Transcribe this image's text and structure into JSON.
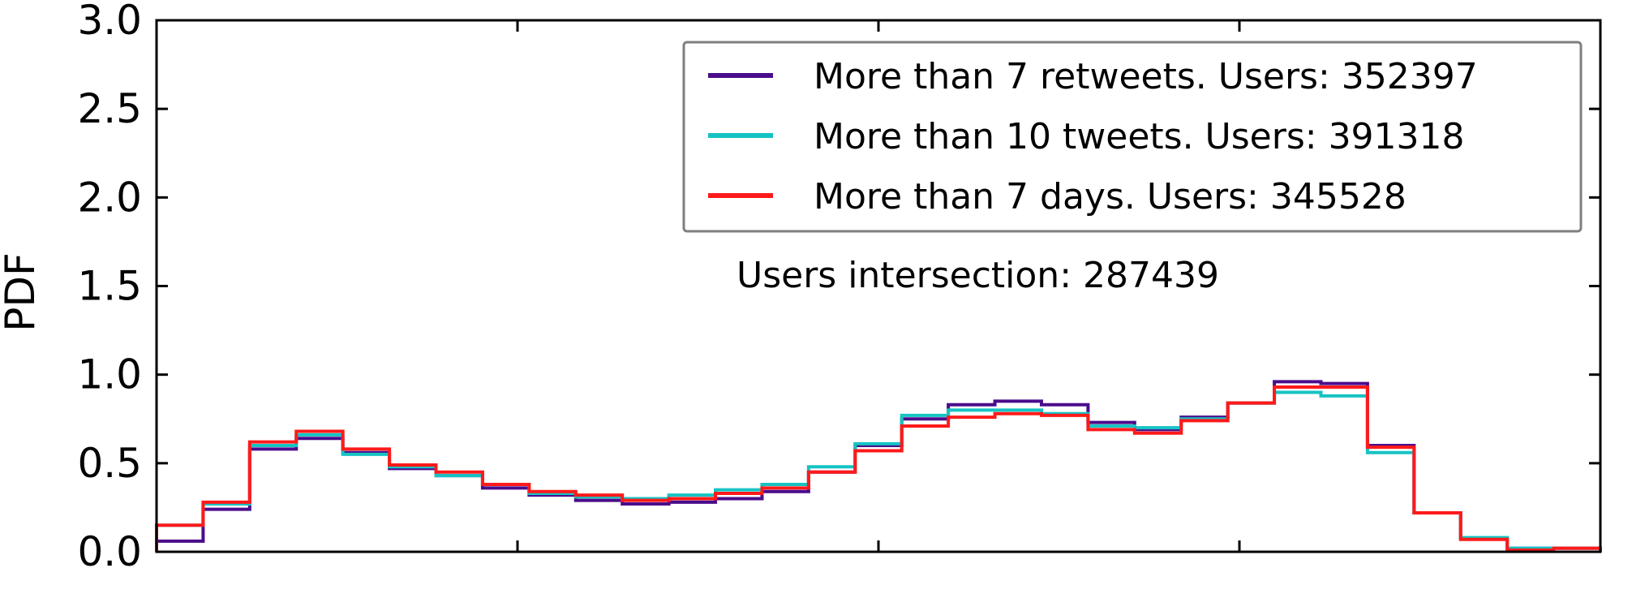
{
  "chart_data": {
    "type": "line",
    "step": true,
    "title": "",
    "xlabel": "",
    "ylabel": "PDF",
    "xlim": [
      0,
      32
    ],
    "ylim": [
      0,
      3.0
    ],
    "yticks": [
      "0.0",
      "0.5",
      "1.0",
      "1.5",
      "2.0",
      "2.5",
      "3.0"
    ],
    "ytick_values": [
      0,
      0.5,
      1.0,
      1.5,
      2.0,
      2.5,
      3.0
    ],
    "xticks": [
      8,
      16,
      24
    ],
    "grid": false,
    "legend_position": "top-right",
    "annotation": "Users intersection: 287439",
    "series": [
      {
        "name": "More than 7 retweets. Users: 352397",
        "color": "#4b0c8c",
        "values": [
          0.06,
          0.24,
          0.58,
          0.64,
          0.56,
          0.47,
          0.43,
          0.36,
          0.32,
          0.29,
          0.27,
          0.28,
          0.3,
          0.34,
          0.45,
          0.6,
          0.75,
          0.83,
          0.85,
          0.83,
          0.73,
          0.69,
          0.76,
          0.84,
          0.96,
          0.95,
          0.6,
          0.22,
          0.08,
          0.02,
          0.02
        ]
      },
      {
        "name": "More than 10 tweets. Users: 391318",
        "color": "#16c3c3",
        "values": [
          0.15,
          0.27,
          0.6,
          0.66,
          0.55,
          0.48,
          0.43,
          0.38,
          0.33,
          0.31,
          0.3,
          0.32,
          0.35,
          0.38,
          0.48,
          0.61,
          0.77,
          0.8,
          0.8,
          0.78,
          0.71,
          0.7,
          0.75,
          0.84,
          0.9,
          0.88,
          0.56,
          0.22,
          0.08,
          0.02,
          0.02
        ]
      },
      {
        "name": "More than 7 days. Users: 345528",
        "color": "#ff1a1a",
        "values": [
          0.15,
          0.28,
          0.62,
          0.68,
          0.58,
          0.49,
          0.45,
          0.38,
          0.34,
          0.32,
          0.29,
          0.3,
          0.33,
          0.36,
          0.45,
          0.57,
          0.71,
          0.76,
          0.78,
          0.77,
          0.69,
          0.67,
          0.74,
          0.84,
          0.93,
          0.93,
          0.59,
          0.22,
          0.07,
          0.01,
          0.02
        ]
      }
    ]
  }
}
